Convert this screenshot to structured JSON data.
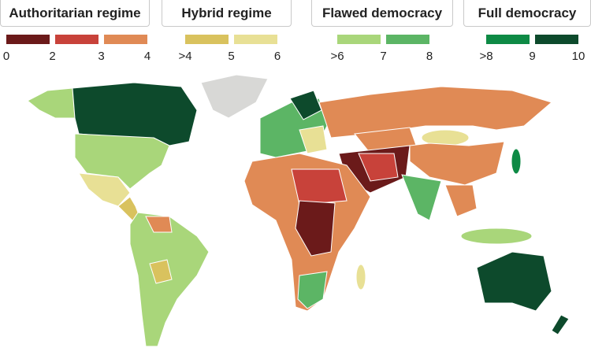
{
  "legend": {
    "groups": [
      {
        "title": "Authoritarian regime",
        "colors": [
          "#6b1a1a",
          "#c8423a",
          "#e08a55"
        ],
        "ticks": [
          "0",
          "2",
          "3",
          "4"
        ]
      },
      {
        "title": "Hybrid regime",
        "colors": [
          "#d9c25e",
          "#e8e095"
        ],
        "ticks": [
          ">4",
          "5",
          "6"
        ]
      },
      {
        "title": "Flawed democracy",
        "colors": [
          "#a9d67a",
          "#5cb565"
        ],
        "ticks": [
          ">6",
          "7",
          "8"
        ]
      },
      {
        "title": "Full democracy",
        "colors": [
          "#0e8a45",
          "#0d4a2c"
        ],
        "ticks": [
          ">8",
          "9",
          "10"
        ]
      }
    ]
  }
}
